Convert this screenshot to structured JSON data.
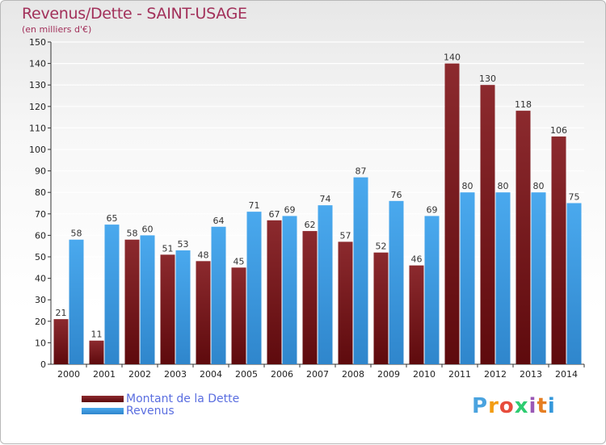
{
  "title": "Revenus/Dette - SAINT-USAGE",
  "subtitle": "(en milliers d'€)",
  "colors": {
    "debt": "#7a1a1e",
    "revenue": "#3d9ee4",
    "title": "#a2305a",
    "legend_text": "#5a6ee0"
  },
  "legend": {
    "debt_label": "Montant de la Dette",
    "revenue_label": "Revenus"
  },
  "logo": {
    "text": "Proxiti",
    "letters": [
      "P",
      "r",
      "o",
      "x",
      "i",
      "t",
      "i"
    ],
    "letter_colors": [
      "#4aa3df",
      "#f39c12",
      "#e74c3c",
      "#2ecc71",
      "#9b59b6",
      "#e67e22",
      "#3498db"
    ]
  },
  "chart_data": {
    "type": "bar",
    "title": "Revenus/Dette - SAINT-USAGE",
    "subtitle": "(en milliers d'€)",
    "xlabel": "",
    "ylabel": "",
    "ylim": [
      0,
      150
    ],
    "ytick_step": 10,
    "grid": true,
    "legend_position": "bottom-left",
    "categories": [
      "2000",
      "2001",
      "2002",
      "2003",
      "2004",
      "2005",
      "2006",
      "2007",
      "2008",
      "2009",
      "2010",
      "2011",
      "2012",
      "2013",
      "2014"
    ],
    "series": [
      {
        "name": "Montant de la Dette",
        "values": [
          21,
          11,
          58,
          51,
          48,
          45,
          67,
          62,
          57,
          52,
          46,
          140,
          130,
          118,
          106
        ]
      },
      {
        "name": "Revenus",
        "values": [
          58,
          65,
          60,
          53,
          64,
          71,
          69,
          74,
          87,
          76,
          69,
          80,
          80,
          80,
          75
        ]
      }
    ]
  }
}
